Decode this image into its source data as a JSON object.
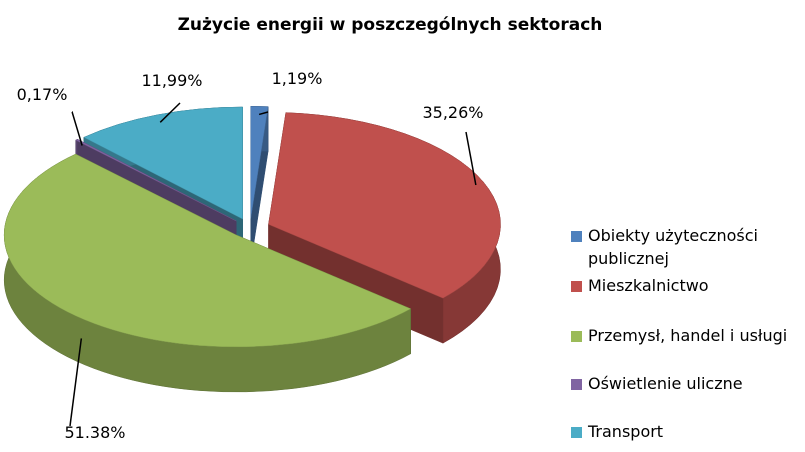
{
  "chart_data": {
    "type": "pie",
    "title": "Zużycie energii w poszczególnych sektorach",
    "categories": [
      "Obiekty użyteczności publicznej",
      "Mieszkalnictwo",
      "Przemysł, handel i usługi",
      "Oświetlenie uliczne",
      "Transport"
    ],
    "values": [
      1.19,
      35.26,
      51.38,
      0.17,
      11.99
    ],
    "value_labels": [
      "1,19%",
      "35,26%",
      "51.38%",
      "0,17%",
      "11,99%"
    ],
    "colors": [
      "#4f81bd",
      "#c0504d",
      "#9bbb59",
      "#8064a2",
      "#4bacc6"
    ],
    "legend": "right"
  }
}
